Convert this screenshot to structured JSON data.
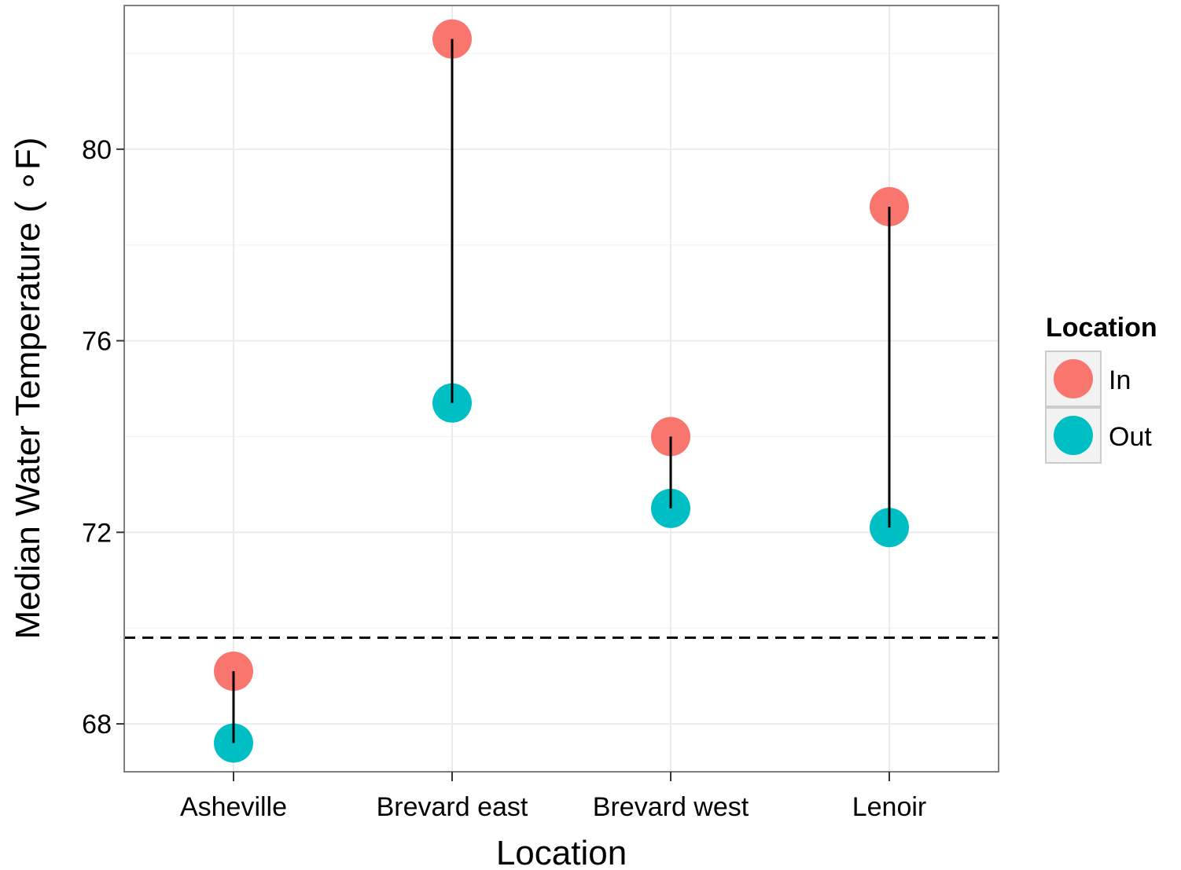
{
  "chart_data": {
    "type": "scatter",
    "categories": [
      "Asheville",
      "Brevard east",
      "Brevard west",
      "Lenoir"
    ],
    "series": [
      {
        "name": "In",
        "values": [
          69.1,
          82.3,
          74.0,
          78.8
        ]
      },
      {
        "name": "Out",
        "values": [
          67.6,
          74.7,
          72.5,
          72.1
        ]
      }
    ],
    "segments": true,
    "reference_line": {
      "y": 69.8,
      "style": "dashed"
    },
    "xlabel": "Location",
    "ylabel": "Median Water Temperature ( ∘F)",
    "yticks": [
      68,
      72,
      76,
      80
    ],
    "ylim": [
      67.0,
      83.0
    ],
    "grid": true,
    "legend": {
      "title": "Location",
      "position": "right"
    },
    "colors": {
      "In": "#F8766D",
      "Out": "#00BFC4",
      "segment": "#000000",
      "grid": "#EBEBEB",
      "panel_border": "#7F7F7F"
    }
  }
}
